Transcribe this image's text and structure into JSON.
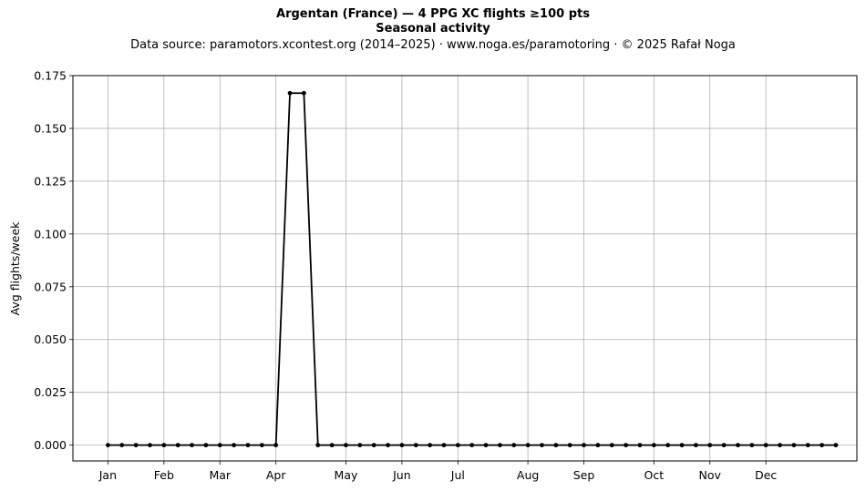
{
  "header": {
    "title": "Argentan (France)  —  4 PPG XC flights ≥100 pts",
    "subtitle": "Seasonal activity",
    "source": "Data source: paramotors.xcontest.org (2014–2025)  ·  www.noga.es/paramotoring  ·  © 2025 Rafał Noga"
  },
  "chart_data": {
    "type": "line",
    "title": "Argentan (France)  —  4 PPG XC flights ≥100 pts",
    "subtitle": "Seasonal activity",
    "xlabel": "",
    "ylabel": "Avg flights/week",
    "x_unit": "week of year",
    "xlim": [
      -1.5,
      54.5
    ],
    "ylim": [
      -0.0075,
      0.175
    ],
    "yticks": [
      0.0,
      0.025,
      0.05,
      0.075,
      0.1,
      0.125,
      0.15,
      0.175
    ],
    "ytick_labels": [
      "0.000",
      "0.025",
      "0.050",
      "0.075",
      "0.100",
      "0.125",
      "0.150",
      "0.175"
    ],
    "xticks": [
      1,
      5,
      9,
      13,
      18,
      22,
      26,
      31,
      35,
      40,
      44,
      48
    ],
    "xtick_labels": [
      "Jan",
      "Feb",
      "Mar",
      "Apr",
      "May",
      "Jun",
      "Jul",
      "Aug",
      "Sep",
      "Oct",
      "Nov",
      "Dec"
    ],
    "grid": true,
    "legend": false,
    "color": "#000000",
    "marker": "dot",
    "x": [
      1,
      2,
      3,
      4,
      5,
      6,
      7,
      8,
      9,
      10,
      11,
      12,
      13,
      14,
      15,
      16,
      17,
      18,
      19,
      20,
      21,
      22,
      23,
      24,
      25,
      26,
      27,
      28,
      29,
      30,
      31,
      32,
      33,
      34,
      35,
      36,
      37,
      38,
      39,
      40,
      41,
      42,
      43,
      44,
      45,
      46,
      47,
      48,
      49,
      50,
      51,
      52,
      53
    ],
    "y": [
      0,
      0,
      0,
      0,
      0,
      0,
      0,
      0,
      0,
      0,
      0,
      0,
      0,
      0.1667,
      0.1667,
      0,
      0,
      0,
      0,
      0,
      0,
      0,
      0,
      0,
      0,
      0,
      0,
      0,
      0,
      0,
      0,
      0,
      0,
      0,
      0,
      0,
      0,
      0,
      0,
      0,
      0,
      0,
      0,
      0,
      0,
      0,
      0,
      0,
      0,
      0,
      0,
      0,
      0
    ]
  }
}
